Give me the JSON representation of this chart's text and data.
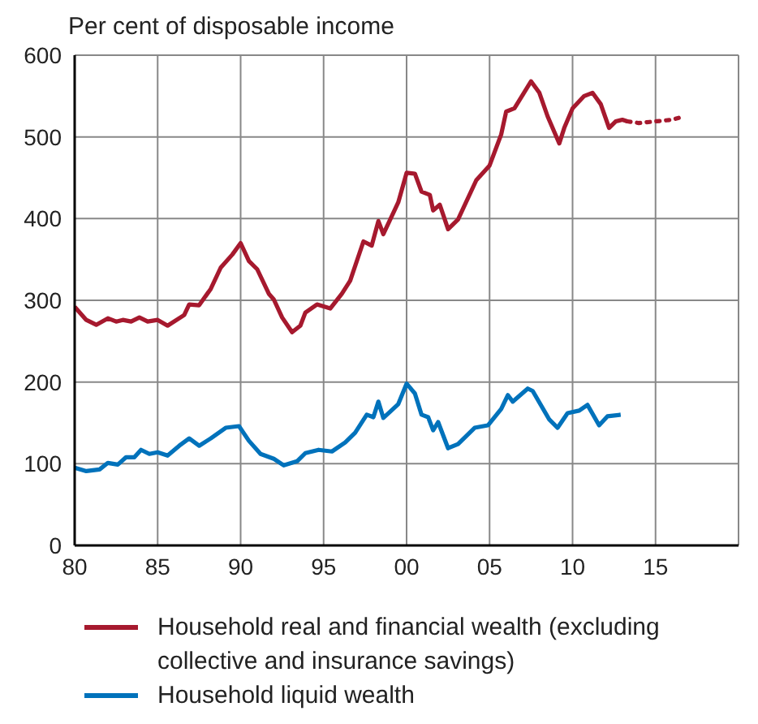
{
  "chart_data": {
    "type": "line",
    "ylabel": "Per cent of disposable income",
    "xlim": [
      1980,
      2020
    ],
    "xticks": [
      {
        "value": 1980,
        "label": "80"
      },
      {
        "value": 1985,
        "label": "85"
      },
      {
        "value": 1990,
        "label": "90"
      },
      {
        "value": 1995,
        "label": "95"
      },
      {
        "value": 2000,
        "label": "00"
      },
      {
        "value": 2005,
        "label": "05"
      },
      {
        "value": 2010,
        "label": "10"
      },
      {
        "value": 2015,
        "label": "15"
      }
    ],
    "ylim": [
      0,
      600
    ],
    "yticks": [
      0,
      100,
      200,
      300,
      400,
      500,
      600
    ],
    "grid": true,
    "legend": "bottom",
    "series": [
      {
        "name": "Household real and financial wealth (excluding collective and insurance savings)",
        "color": "#a6192e",
        "x": [
          1980.0,
          1980.7,
          1981.3,
          1982.0,
          1982.5,
          1982.9,
          1983.4,
          1983.9,
          1984.4,
          1985.0,
          1985.6,
          1986.6,
          1986.9,
          1987.5,
          1988.2,
          1988.8,
          1989.5,
          1990.0,
          1990.5,
          1991.0,
          1991.7,
          1992.0,
          1992.5,
          1993.1,
          1993.6,
          1993.9,
          1994.6,
          1995.4,
          1996.1,
          1996.6,
          1997.4,
          1997.9,
          1998.3,
          1998.6,
          1999.5,
          2000.0,
          2000.5,
          2000.9,
          2001.4,
          2001.6,
          2002.0,
          2002.5,
          2003.1,
          2004.2,
          2005.0,
          2005.7,
          2006.0,
          2006.5,
          2007.5,
          2008.0,
          2008.5,
          2009.2,
          2009.5,
          2010.0,
          2010.7,
          2011.2,
          2011.7,
          2012.2,
          2012.6,
          2013.0,
          2013.3
        ],
        "values": [
          292,
          276,
          270,
          278,
          274,
          276,
          274,
          279,
          274,
          276,
          269,
          282,
          295,
          294,
          314,
          340,
          356,
          370,
          348,
          338,
          308,
          301,
          279,
          261,
          269,
          285,
          295,
          290,
          308,
          324,
          372,
          367,
          397,
          381,
          420,
          456,
          455,
          433,
          429,
          410,
          417,
          387,
          399,
          447,
          465,
          503,
          531,
          535,
          568,
          554,
          525,
          492,
          511,
          535,
          550,
          554,
          540,
          511,
          519,
          521,
          519
        ]
      },
      {
        "color": "#a6192e",
        "line_style": "dotted",
        "x": [
          2013.3,
          2014.0,
          2015.0,
          2016.0,
          2016.5
        ],
        "values": [
          519,
          517,
          519,
          521,
          524
        ]
      },
      {
        "name": "Household liquid wealth",
        "color": "#0072bb",
        "x": [
          1980.0,
          1980.7,
          1981.5,
          1982.0,
          1982.6,
          1983.1,
          1983.6,
          1984.0,
          1984.5,
          1985.0,
          1985.6,
          1986.3,
          1986.9,
          1987.5,
          1988.2,
          1989.1,
          1989.9,
          1990.5,
          1991.2,
          1992.0,
          1992.6,
          1993.4,
          1993.9,
          1994.7,
          1995.5,
          1996.3,
          1996.9,
          1997.6,
          1998.0,
          1998.3,
          1998.6,
          1999.5,
          2000.0,
          2000.5,
          2000.9,
          2001.3,
          2001.6,
          2001.9,
          2002.5,
          2003.1,
          2004.1,
          2004.9,
          2005.7,
          2006.1,
          2006.4,
          2007.3,
          2007.6,
          2008.6,
          2009.1,
          2009.7,
          2010.4,
          2010.9,
          2011.6,
          2012.1,
          2012.9
        ],
        "values": [
          95,
          91,
          93,
          101,
          99,
          108,
          108,
          117,
          112,
          114,
          110,
          122,
          131,
          122,
          131,
          144,
          146,
          128,
          112,
          106,
          98,
          103,
          113,
          117,
          115,
          126,
          138,
          160,
          157,
          176,
          156,
          173,
          198,
          186,
          160,
          157,
          141,
          151,
          119,
          124,
          144,
          147,
          167,
          184,
          176,
          192,
          189,
          154,
          144,
          162,
          165,
          172,
          147,
          158,
          160
        ]
      }
    ]
  }
}
